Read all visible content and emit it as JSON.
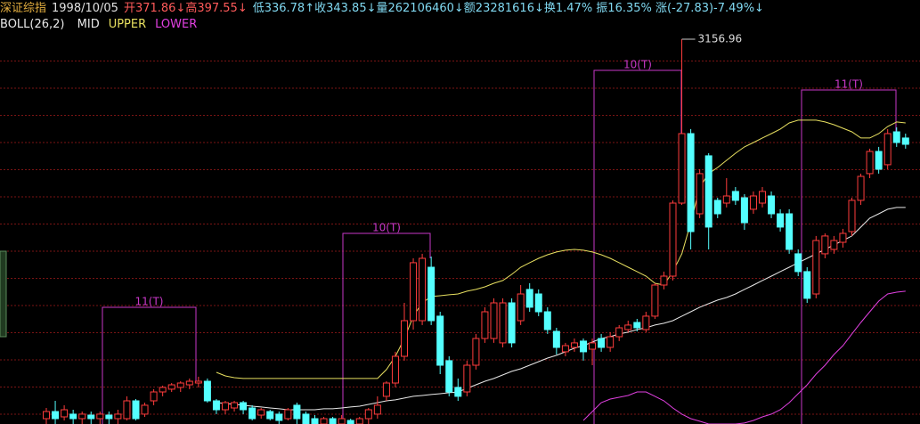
{
  "chart_data": {
    "type": "candlestick",
    "info_bar": [
      {
        "text": "深证综指",
        "color": "#e6b040"
      },
      {
        "text": "1998/10/05",
        "color": "#e0e0e0"
      },
      {
        "text": "开371.86↓高397.55↓",
        "color": "#ff5a5a"
      },
      {
        "text": "低336.78↑收343.85↓量262106460↓额23281616↓换1.47% 振16.35% 涨(-27.83)-7.49%↓",
        "color": "#80d8f0"
      }
    ],
    "indicator": "BOLL(26,2)",
    "up_color": "#ff3c3c",
    "down_color": "#54ffff",
    "annotation_color": "#c838c8",
    "annotations": [
      "11(T)",
      "10(T)",
      "10(T)",
      "11(T)"
    ],
    "ylim": [
      349,
      3183
    ],
    "open": [
      388,
      440,
      401,
      421,
      388,
      414,
      388,
      414,
      388,
      388,
      518,
      421,
      518,
      583,
      603,
      616,
      635,
      648,
      661,
      518,
      453,
      466,
      505,
      466,
      414,
      440,
      421,
      388,
      486,
      421,
      388,
      349,
      388,
      349,
      375,
      349,
      388,
      421,
      551,
      648,
      843,
      1103,
      1103,
      1493,
      1136,
      811,
      616,
      583,
      778,
      973,
      973,
      941,
      1233,
      1103,
      1331,
      1298,
      1168,
      1025,
      876,
      908,
      954,
      895,
      973,
      908,
      986,
      1038,
      1090,
      1038,
      1136,
      1363,
      1428,
      1961,
      2468,
      1883,
      2306,
      1981,
      1961,
      2046,
      2000,
      1916,
      1961,
      2013,
      1883,
      1883,
      1591,
      1461,
      1298,
      1591,
      1623,
      1675,
      1753,
      1981,
      2176,
      2338,
      2241,
      2481,
      2436
    ],
    "high": [
      466,
      518,
      486,
      453,
      440,
      440,
      440,
      440,
      453,
      551,
      531,
      505,
      603,
      629,
      648,
      661,
      681,
      694,
      681,
      531,
      518,
      518,
      518,
      486,
      466,
      453,
      440,
      466,
      505,
      440,
      414,
      401,
      401,
      414,
      388,
      401,
      466,
      551,
      661,
      876,
      1233,
      1558,
      1591,
      1571,
      1168,
      843,
      681,
      811,
      1006,
      1201,
      1266,
      1266,
      1266,
      1363,
      1376,
      1331,
      1201,
      1051,
      941,
      973,
      973,
      973,
      1006,
      1019,
      1071,
      1103,
      1116,
      1168,
      1376,
      1461,
      1981,
      3156.96,
      2501,
      2208,
      2325,
      2000,
      2143,
      2078,
      2026,
      2046,
      2078,
      2046,
      1916,
      1916,
      1623,
      1493,
      1721,
      1740,
      1721,
      1773,
      2000,
      2176,
      2358,
      2371,
      2501,
      2514,
      2468
    ],
    "low": [
      349,
      349,
      375,
      349,
      349,
      349,
      349,
      349,
      349,
      375,
      375,
      401,
      486,
      551,
      583,
      583,
      603,
      616,
      505,
      421,
      421,
      440,
      421,
      375,
      388,
      375,
      349,
      375,
      349,
      349,
      349,
      349,
      349,
      349,
      349,
      349,
      349,
      388,
      518,
      616,
      811,
      1038,
      1071,
      1071,
      713,
      551,
      518,
      551,
      746,
      941,
      941,
      908,
      908,
      1071,
      1168,
      1136,
      1006,
      856,
      843,
      876,
      811,
      778,
      876,
      876,
      954,
      1019,
      1025,
      1019,
      1116,
      1331,
      1396,
      1948,
      1623,
      1851,
      1623,
      1851,
      1929,
      1948,
      1766,
      1883,
      1929,
      1851,
      1753,
      1591,
      1428,
      1233,
      1266,
      1558,
      1591,
      1636,
      1721,
      1948,
      2143,
      2176,
      2208,
      2371,
      2358
    ],
    "close": [
      440,
      388,
      453,
      388,
      421,
      388,
      421,
      388,
      421,
      518,
      388,
      486,
      583,
      616,
      635,
      648,
      661,
      661,
      518,
      453,
      505,
      505,
      453,
      388,
      453,
      388,
      375,
      453,
      388,
      349,
      349,
      388,
      349,
      388,
      349,
      388,
      453,
      486,
      648,
      843,
      1103,
      1526,
      1558,
      1103,
      778,
      583,
      551,
      778,
      973,
      1168,
      1233,
      1233,
      941,
      1298,
      1201,
      1168,
      1038,
      908,
      921,
      941,
      876,
      941,
      908,
      986,
      1051,
      1071,
      1051,
      1136,
      1363,
      1428,
      1961,
      2468,
      1753,
      2176,
      1786,
      1883,
      2013,
      1981,
      1818,
      2013,
      2046,
      1883,
      1786,
      1623,
      1461,
      1266,
      1688,
      1721,
      1688,
      1740,
      1981,
      2156,
      2338,
      2208,
      2468,
      2403,
      2390
    ],
    "series": [
      {
        "name": "MID",
        "color": "#e8e8e8",
        "values": [
          null,
          null,
          null,
          null,
          null,
          null,
          null,
          null,
          null,
          null,
          null,
          null,
          null,
          null,
          null,
          null,
          null,
          null,
          null,
          505,
          499,
          492,
          486,
          479,
          473,
          466,
          460,
          453,
          453,
          453,
          453,
          460,
          460,
          466,
          473,
          479,
          492,
          505,
          518,
          525,
          538,
          551,
          557,
          564,
          570,
          577,
          583,
          609,
          635,
          661,
          681,
          707,
          733,
          752,
          778,
          804,
          830,
          850,
          876,
          902,
          921,
          947,
          973,
          986,
          1006,
          1019,
          1038,
          1051,
          1071,
          1084,
          1103,
          1136,
          1168,
          1201,
          1227,
          1253,
          1272,
          1298,
          1331,
          1363,
          1396,
          1428,
          1461,
          1493,
          1526,
          1558,
          1591,
          1623,
          1656,
          1688,
          1721,
          1786,
          1851,
          1883,
          1916,
          1929,
          1929
        ]
      },
      {
        "name": "UPPER",
        "color": "#e8e060",
        "values": [
          null,
          null,
          null,
          null,
          null,
          null,
          null,
          null,
          null,
          null,
          null,
          null,
          null,
          null,
          null,
          null,
          null,
          null,
          null,
          726,
          700,
          687,
          681,
          681,
          681,
          681,
          681,
          681,
          681,
          681,
          681,
          681,
          681,
          681,
          681,
          681,
          681,
          681,
          746,
          843,
          973,
          1136,
          1233,
          1279,
          1285,
          1292,
          1298,
          1318,
          1331,
          1350,
          1376,
          1396,
          1441,
          1493,
          1526,
          1558,
          1584,
          1604,
          1617,
          1623,
          1617,
          1604,
          1584,
          1558,
          1526,
          1493,
          1461,
          1428,
          1376,
          1363,
          1461,
          1591,
          1818,
          2078,
          2176,
          2221,
          2273,
          2325,
          2371,
          2403,
          2436,
          2468,
          2501,
          2546,
          2566,
          2566,
          2566,
          2553,
          2533,
          2507,
          2481,
          2436,
          2436,
          2468,
          2520,
          2553,
          2546
        ]
      },
      {
        "name": "LOWER",
        "color": "#e040e0",
        "values": [
          null,
          null,
          null,
          null,
          null,
          null,
          null,
          null,
          null,
          null,
          null,
          null,
          null,
          null,
          null,
          null,
          null,
          null,
          null,
          null,
          null,
          null,
          null,
          null,
          null,
          null,
          null,
          null,
          null,
          null,
          null,
          null,
          null,
          null,
          null,
          null,
          null,
          null,
          null,
          null,
          null,
          null,
          null,
          null,
          null,
          null,
          null,
          null,
          null,
          null,
          null,
          null,
          null,
          null,
          null,
          null,
          null,
          null,
          null,
          null,
          375,
          440,
          505,
          531,
          544,
          557,
          583,
          583,
          551,
          518,
          466,
          421,
          388,
          369,
          349,
          349,
          349,
          349,
          356,
          375,
          401,
          421,
          453,
          505,
          570,
          635,
          713,
          778,
          856,
          921,
          1006,
          1090,
          1168,
          1246,
          1298,
          1311,
          1318
        ]
      }
    ]
  }
}
